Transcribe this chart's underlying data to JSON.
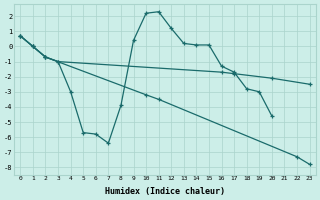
{
  "xlabel": "Humidex (Indice chaleur)",
  "bg_color": "#cceee8",
  "line_color": "#1a6b6b",
  "grid_color": "#aad4cc",
  "xlim": [
    -0.5,
    23.5
  ],
  "ylim": [
    -8.5,
    2.8
  ],
  "xticks": [
    0,
    1,
    2,
    3,
    4,
    5,
    6,
    7,
    8,
    9,
    10,
    11,
    12,
    13,
    14,
    15,
    16,
    17,
    18,
    19,
    20,
    21,
    22,
    23
  ],
  "yticks": [
    -8,
    -7,
    -6,
    -5,
    -4,
    -3,
    -2,
    -1,
    0,
    1,
    2
  ],
  "series": [
    {
      "x": [
        0,
        1,
        2,
        10,
        11,
        22,
        23
      ],
      "y": [
        0.7,
        0.0,
        -0.7,
        -3.2,
        -3.5,
        -7.3,
        -7.8
      ]
    },
    {
      "x": [
        0,
        1,
        2,
        3,
        16,
        17,
        20,
        23
      ],
      "y": [
        0.7,
        0.0,
        -0.7,
        -1.0,
        -1.7,
        -1.8,
        -2.1,
        -2.5
      ]
    },
    {
      "x": [
        0,
        1,
        2,
        3,
        4,
        5,
        6,
        7,
        8,
        9,
        10,
        11,
        12,
        13,
        14,
        15,
        16,
        17,
        18,
        19,
        20
      ],
      "y": [
        0.7,
        0.0,
        -0.7,
        -1.0,
        -3.0,
        -5.7,
        -5.8,
        -6.4,
        -3.9,
        0.4,
        2.2,
        2.3,
        1.2,
        0.2,
        0.1,
        0.1,
        -1.3,
        -1.7,
        -2.8,
        -3.0,
        -4.6
      ]
    }
  ]
}
